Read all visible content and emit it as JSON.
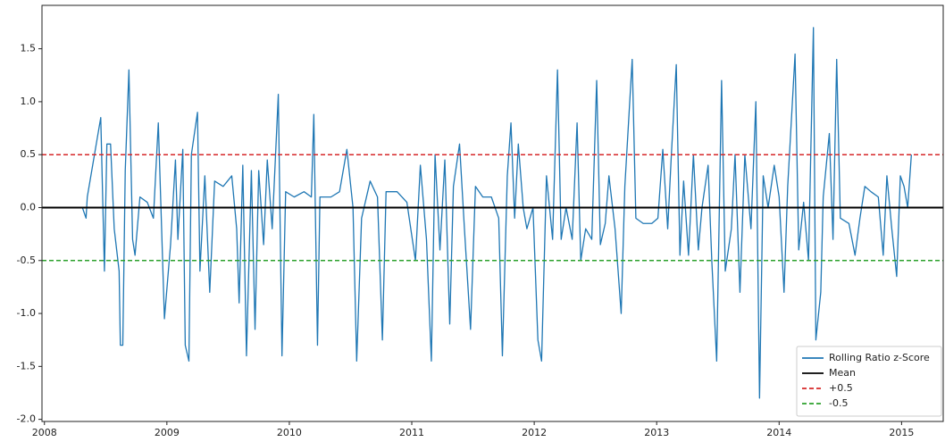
{
  "chart_data": {
    "type": "line",
    "x": [
      2008.31,
      2008.34,
      2008.35,
      2008.46,
      2008.49,
      2008.51,
      2008.54,
      2008.57,
      2008.61,
      2008.62,
      2008.64,
      2008.66,
      2008.69,
      2008.72,
      2008.74,
      2008.78,
      2008.84,
      2008.89,
      2008.93,
      2008.98,
      2009.03,
      2009.07,
      2009.09,
      2009.13,
      2009.15,
      2009.18,
      2009.2,
      2009.25,
      2009.27,
      2009.31,
      2009.35,
      2009.39,
      2009.46,
      2009.53,
      2009.57,
      2009.59,
      2009.62,
      2009.65,
      2009.69,
      2009.72,
      2009.75,
      2009.79,
      2009.82,
      2009.86,
      2009.91,
      2009.94,
      2009.97,
      2010.04,
      2010.12,
      2010.18,
      2010.2,
      2010.23,
      2010.25,
      2010.34,
      2010.41,
      2010.47,
      2010.52,
      2010.55,
      2010.59,
      2010.66,
      2010.72,
      2010.76,
      2010.79,
      2010.88,
      2010.96,
      2011.03,
      2011.07,
      2011.12,
      2011.16,
      2011.19,
      2011.23,
      2011.27,
      2011.31,
      2011.34,
      2011.39,
      2011.43,
      2011.48,
      2011.52,
      2011.58,
      2011.65,
      2011.71,
      2011.74,
      2011.78,
      2011.81,
      2011.84,
      2011.87,
      2011.91,
      2011.94,
      2011.99,
      2012.03,
      2012.06,
      2012.1,
      2012.15,
      2012.19,
      2012.22,
      2012.26,
      2012.31,
      2012.35,
      2012.38,
      2012.42,
      2012.47,
      2012.51,
      2012.54,
      2012.58,
      2012.61,
      2012.66,
      2012.71,
      2012.74,
      2012.8,
      2012.83,
      2012.89,
      2012.96,
      2013.01,
      2013.05,
      2013.09,
      2013.12,
      2013.16,
      2013.19,
      2013.22,
      2013.26,
      2013.3,
      2013.34,
      2013.37,
      2013.42,
      2013.45,
      2013.49,
      2013.53,
      2013.56,
      2013.61,
      2013.64,
      2013.68,
      2013.72,
      2013.77,
      2013.81,
      2013.84,
      2013.87,
      2013.91,
      2013.96,
      2014.0,
      2014.04,
      2014.07,
      2014.13,
      2014.16,
      2014.2,
      2014.24,
      2014.28,
      2014.3,
      2014.34,
      2014.36,
      2014.41,
      2014.44,
      2014.47,
      2014.5,
      2014.57,
      2014.62,
      2014.66,
      2014.7,
      2014.75,
      2014.81,
      2014.85,
      2014.88,
      2014.92,
      2014.96,
      2014.99,
      2015.02,
      2015.05,
      2015.08
    ],
    "series": [
      {
        "name": "Rolling Ratio z-Score",
        "color": "#1f77b4",
        "values": [
          0,
          -0.1,
          0.1,
          0.85,
          -0.6,
          0.6,
          0.6,
          -0.2,
          -0.6,
          -1.3,
          -1.3,
          0.35,
          1.3,
          -0.3,
          -0.45,
          0.1,
          0.05,
          -0.1,
          0.8,
          -1.05,
          -0.35,
          0.45,
          -0.3,
          0.55,
          -1.3,
          -1.45,
          0.5,
          0.9,
          -0.6,
          0.3,
          -0.8,
          0.25,
          0.2,
          0.3,
          -0.2,
          -0.9,
          0.4,
          -1.4,
          0.35,
          -1.15,
          0.35,
          -0.35,
          0.45,
          -0.2,
          1.07,
          -1.4,
          0.15,
          0.1,
          0.15,
          0.1,
          0.88,
          -1.3,
          0.1,
          0.1,
          0.15,
          0.55,
          0,
          -1.45,
          -0.1,
          0.25,
          0.1,
          -1.25,
          0.15,
          0.15,
          0.05,
          -0.5,
          0.4,
          -0.3,
          -1.45,
          0.5,
          -0.4,
          0.45,
          -1.1,
          0.2,
          0.6,
          -0.2,
          -1.15,
          0.2,
          0.1,
          0.1,
          -0.1,
          -1.4,
          0.3,
          0.8,
          -0.1,
          0.6,
          0,
          -0.2,
          0,
          -1.25,
          -1.45,
          0.3,
          -0.3,
          1.3,
          -0.3,
          0,
          -0.3,
          0.8,
          -0.5,
          -0.2,
          -0.3,
          1.2,
          -0.35,
          -0.15,
          0.3,
          -0.2,
          -1.0,
          0.2,
          1.4,
          -0.1,
          -0.15,
          -0.15,
          -0.1,
          0.55,
          -0.2,
          0.5,
          1.35,
          -0.45,
          0.25,
          -0.45,
          0.5,
          -0.4,
          0,
          0.4,
          -0.5,
          -1.45,
          1.2,
          -0.6,
          -0.2,
          0.5,
          -0.8,
          0.5,
          -0.2,
          1.0,
          -1.8,
          0.3,
          0,
          0.4,
          0.1,
          -0.8,
          0.2,
          1.45,
          -0.4,
          0.05,
          -0.5,
          1.7,
          -1.25,
          -0.8,
          0.1,
          0.7,
          -0.3,
          1.4,
          -0.1,
          -0.15,
          -0.45,
          -0.1,
          0.2,
          0.15,
          0.1,
          -0.45,
          0.3,
          -0.2,
          -0.65,
          0.3,
          0.2,
          0,
          0.5
        ]
      }
    ],
    "reference_lines": [
      {
        "name": "Mean",
        "value": 0,
        "color": "#000000",
        "dashed": false
      },
      {
        "name": "+0.5",
        "value": 0.5,
        "color": "#d62728",
        "dashed": true
      },
      {
        "name": "-0.5",
        "value": -0.5,
        "color": "#2ca02c",
        "dashed": true
      }
    ],
    "xlim": [
      2007.98,
      2015.34
    ],
    "xticks": [
      2008,
      2009,
      2010,
      2011,
      2012,
      2013,
      2014,
      2015
    ],
    "ylim": [
      -2.02,
      1.91
    ],
    "yticks": [
      {
        "value": -2,
        "label": "-2.0"
      },
      {
        "value": -1.5,
        "label": "-1.5"
      },
      {
        "value": -1,
        "label": "-1.0"
      },
      {
        "value": -0.5,
        "label": "-0.5"
      },
      {
        "value": 0,
        "label": "0.0"
      },
      {
        "value": 0.5,
        "label": "0.5"
      },
      {
        "value": 1,
        "label": "1.0"
      },
      {
        "value": 1.5,
        "label": "1.5"
      }
    ],
    "legend": "lower right"
  }
}
